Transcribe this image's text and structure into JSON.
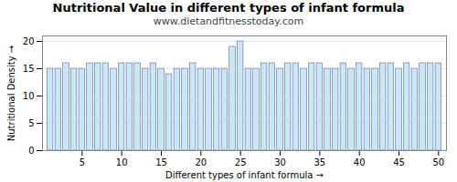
{
  "chart_data": {
    "type": "bar",
    "title": "Nutritional Value in different types of infant formula",
    "subtitle": "www.dietandfitnesstoday.com",
    "xlabel": "Different types of infant formula",
    "ylabel": "Nutritional Density",
    "x": [
      1,
      2,
      3,
      4,
      5,
      6,
      7,
      8,
      9,
      10,
      11,
      12,
      13,
      14,
      15,
      16,
      17,
      18,
      19,
      20,
      21,
      22,
      23,
      24,
      25,
      26,
      27,
      28,
      29,
      30,
      31,
      32,
      33,
      34,
      35,
      36,
      37,
      38,
      39,
      40,
      41,
      42,
      43,
      44,
      45,
      46,
      47,
      48,
      49,
      50
    ],
    "values": [
      15,
      15,
      16,
      15,
      15,
      16,
      16,
      16,
      15,
      16,
      16,
      16,
      15,
      16,
      15,
      14,
      15,
      15,
      16,
      15,
      15,
      15,
      15,
      19,
      20,
      15,
      15,
      16,
      16,
      15,
      16,
      16,
      15,
      16,
      16,
      15,
      15,
      16,
      15,
      16,
      15,
      15,
      16,
      16,
      15,
      16,
      15,
      16,
      16,
      16
    ],
    "color": "#c8e6f5",
    "xlim": [
      0,
      51
    ],
    "xticks": [
      5,
      10,
      15,
      20,
      25,
      30,
      35,
      40,
      45,
      50
    ],
    "ylim": [
      0,
      21
    ],
    "yticks": [
      0,
      5,
      10,
      15,
      20
    ],
    "grid": true
  }
}
